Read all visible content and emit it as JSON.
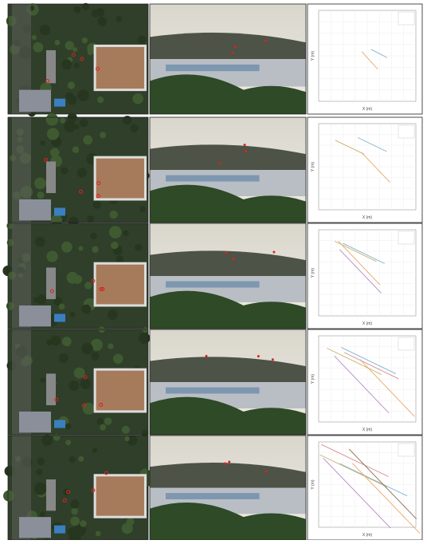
{
  "rows": [
    {
      "plot": {
        "xlabel": "X (m)",
        "ylabel": "Y (m)"
      }
    },
    {
      "plot": {
        "xlabel": "X (m)",
        "ylabel": "Y (m)"
      }
    },
    {
      "plot": {
        "xlabel": "X (m)",
        "ylabel": "Y (m)"
      }
    },
    {
      "plot": {
        "xlabel": "X (m)",
        "ylabel": "Y (m)"
      }
    },
    {
      "plot": {
        "xlabel": "X (m)",
        "ylabel": "Y (m)"
      }
    }
  ]
}
